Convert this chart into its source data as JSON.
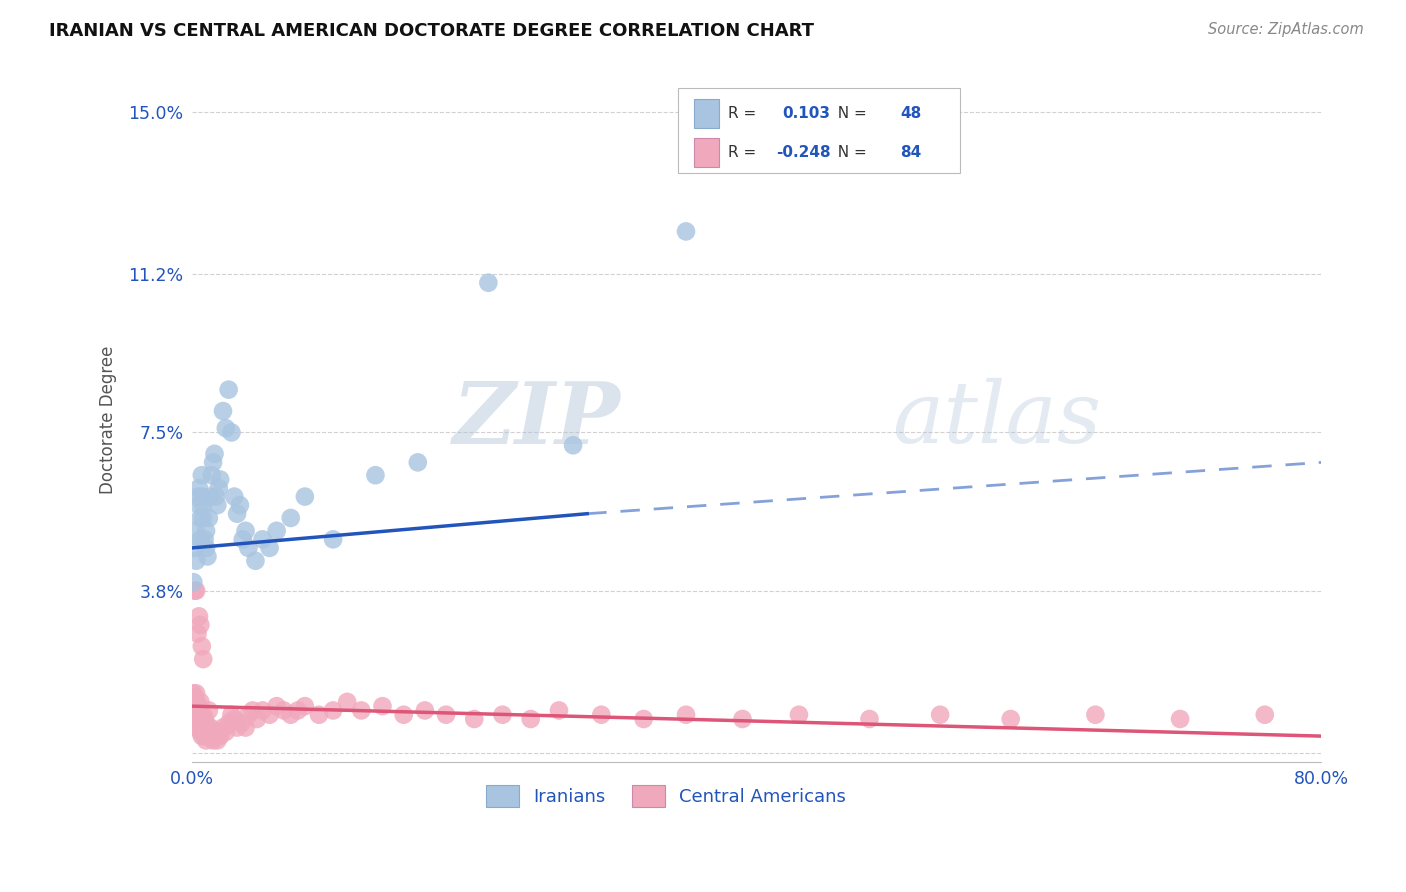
{
  "title": "IRANIAN VS CENTRAL AMERICAN DOCTORATE DEGREE CORRELATION CHART",
  "source": "Source: ZipAtlas.com",
  "ylabel": "Doctorate Degree",
  "xlim": [
    0.0,
    0.8
  ],
  "ylim": [
    -0.002,
    0.158
  ],
  "ytick_vals": [
    0.0,
    0.038,
    0.075,
    0.112,
    0.15
  ],
  "ytick_labels": [
    "",
    "3.8%",
    "7.5%",
    "11.2%",
    "15.0%"
  ],
  "xtick_vals": [
    0.0,
    0.2,
    0.4,
    0.6,
    0.8
  ],
  "xtick_labels": [
    "0.0%",
    "",
    "",
    "",
    "80.0%"
  ],
  "background_color": "#ffffff",
  "grid_color": "#cccccc",
  "iranians_color": "#a8c4e0",
  "ca_color": "#f0a8bc",
  "iranians_line_color": "#2255bb",
  "ca_line_color": "#dd5577",
  "legend_r_iranians": "0.103",
  "legend_n_iranians": "48",
  "legend_r_ca": "-0.248",
  "legend_n_ca": "84",
  "watermark_zip": "ZIP",
  "watermark_atlas": "atlas",
  "iranians_x": [
    0.001,
    0.002,
    0.003,
    0.003,
    0.004,
    0.005,
    0.005,
    0.006,
    0.006,
    0.007,
    0.007,
    0.008,
    0.008,
    0.009,
    0.01,
    0.01,
    0.011,
    0.012,
    0.013,
    0.014,
    0.015,
    0.016,
    0.017,
    0.018,
    0.019,
    0.02,
    0.022,
    0.024,
    0.026,
    0.028,
    0.03,
    0.032,
    0.034,
    0.036,
    0.038,
    0.04,
    0.045,
    0.05,
    0.055,
    0.06,
    0.07,
    0.08,
    0.1,
    0.13,
    0.16,
    0.21,
    0.27,
    0.35
  ],
  "iranians_y": [
    0.04,
    0.048,
    0.052,
    0.045,
    0.06,
    0.058,
    0.062,
    0.05,
    0.055,
    0.065,
    0.06,
    0.058,
    0.055,
    0.05,
    0.048,
    0.052,
    0.046,
    0.055,
    0.06,
    0.065,
    0.068,
    0.07,
    0.06,
    0.058,
    0.062,
    0.064,
    0.08,
    0.076,
    0.085,
    0.075,
    0.06,
    0.056,
    0.058,
    0.05,
    0.052,
    0.048,
    0.045,
    0.05,
    0.048,
    0.052,
    0.055,
    0.06,
    0.05,
    0.065,
    0.068,
    0.11,
    0.072,
    0.122
  ],
  "ca_x": [
    0.001,
    0.001,
    0.001,
    0.002,
    0.002,
    0.002,
    0.003,
    0.003,
    0.003,
    0.003,
    0.004,
    0.004,
    0.005,
    0.005,
    0.006,
    0.006,
    0.006,
    0.007,
    0.007,
    0.008,
    0.008,
    0.009,
    0.009,
    0.01,
    0.01,
    0.011,
    0.012,
    0.012,
    0.013,
    0.014,
    0.015,
    0.016,
    0.017,
    0.018,
    0.019,
    0.02,
    0.022,
    0.024,
    0.026,
    0.028,
    0.03,
    0.032,
    0.035,
    0.038,
    0.04,
    0.043,
    0.046,
    0.05,
    0.055,
    0.06,
    0.065,
    0.07,
    0.075,
    0.08,
    0.09,
    0.1,
    0.11,
    0.12,
    0.135,
    0.15,
    0.165,
    0.18,
    0.2,
    0.22,
    0.24,
    0.26,
    0.29,
    0.32,
    0.35,
    0.39,
    0.43,
    0.48,
    0.53,
    0.58,
    0.64,
    0.7,
    0.76,
    0.002,
    0.003,
    0.004,
    0.005,
    0.006,
    0.007,
    0.008
  ],
  "ca_y": [
    0.014,
    0.011,
    0.008,
    0.01,
    0.013,
    0.008,
    0.012,
    0.009,
    0.007,
    0.014,
    0.006,
    0.009,
    0.007,
    0.011,
    0.005,
    0.008,
    0.012,
    0.004,
    0.008,
    0.005,
    0.009,
    0.004,
    0.008,
    0.003,
    0.007,
    0.004,
    0.005,
    0.01,
    0.006,
    0.005,
    0.003,
    0.005,
    0.004,
    0.003,
    0.005,
    0.004,
    0.006,
    0.005,
    0.007,
    0.009,
    0.008,
    0.006,
    0.007,
    0.006,
    0.009,
    0.01,
    0.008,
    0.01,
    0.009,
    0.011,
    0.01,
    0.009,
    0.01,
    0.011,
    0.009,
    0.01,
    0.012,
    0.01,
    0.011,
    0.009,
    0.01,
    0.009,
    0.008,
    0.009,
    0.008,
    0.01,
    0.009,
    0.008,
    0.009,
    0.008,
    0.009,
    0.008,
    0.009,
    0.008,
    0.009,
    0.008,
    0.009,
    0.038,
    0.038,
    0.028,
    0.032,
    0.03,
    0.025,
    0.022
  ],
  "iran_line_x0": 0.0,
  "iran_line_x_solid_end": 0.28,
  "iran_line_x_dash_end": 0.8,
  "iran_line_y0": 0.048,
  "iran_line_y_solid_end": 0.056,
  "iran_line_y_dash_end": 0.068,
  "ca_line_x0": 0.0,
  "ca_line_x_end": 0.8,
  "ca_line_y0": 0.011,
  "ca_line_y_end": 0.004
}
